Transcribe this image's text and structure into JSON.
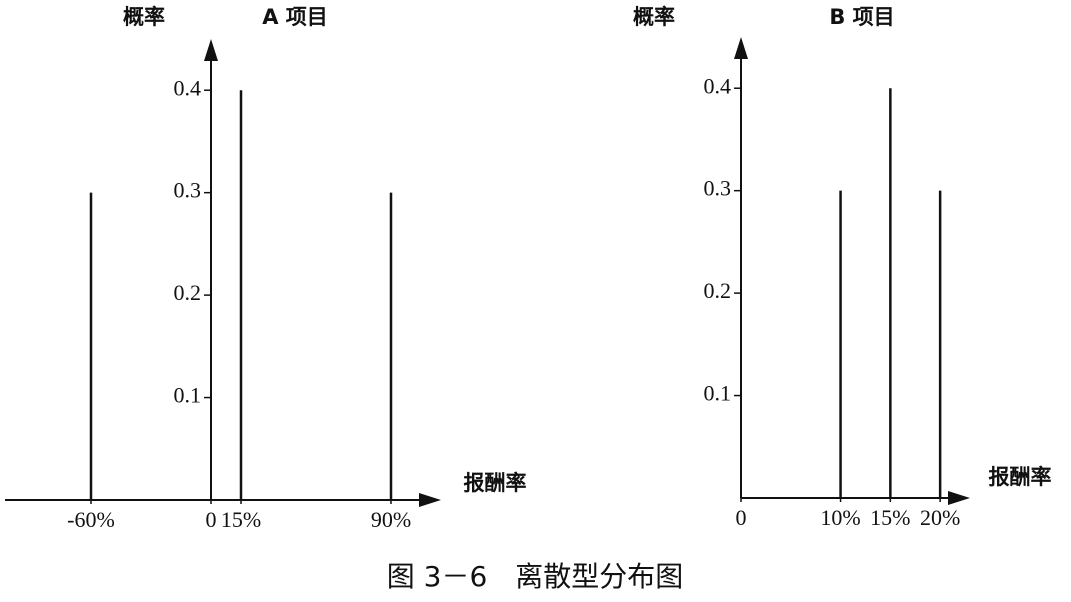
{
  "chart_data": [
    {
      "type": "bar",
      "title": "A 项目",
      "y_label": "概率",
      "x_label": "报酬率",
      "x": [
        -60,
        15,
        90
      ],
      "values": [
        0.3,
        0.4,
        0.3
      ],
      "color": "#111111",
      "xlim": [
        -103,
        115
      ],
      "ylim": [
        0,
        0.45
      ],
      "xticks": [
        {
          "value": -60,
          "label": "-60%"
        },
        0,
        {
          "value": 15,
          "label": "15%"
        },
        {
          "value": 90,
          "label": "90%"
        }
      ],
      "yticks": [
        0.1,
        0.2,
        0.3,
        0.4
      ]
    },
    {
      "type": "bar",
      "title": "B 项目",
      "y_label": "概率",
      "x_label": "报酬率",
      "x": [
        10,
        15,
        20
      ],
      "values": [
        0.3,
        0.4,
        0.3
      ],
      "color": "#111111",
      "xlim": [
        0,
        23
      ],
      "ylim": [
        0,
        0.45
      ],
      "xticks": [
        0,
        {
          "value": 10,
          "label": "10%"
        },
        {
          "value": 15,
          "label": "15%"
        },
        {
          "value": 20,
          "label": "20%"
        }
      ],
      "yticks": [
        0.1,
        0.2,
        0.3,
        0.4
      ]
    }
  ],
  "caption": "图 3－6　离散型分布图"
}
